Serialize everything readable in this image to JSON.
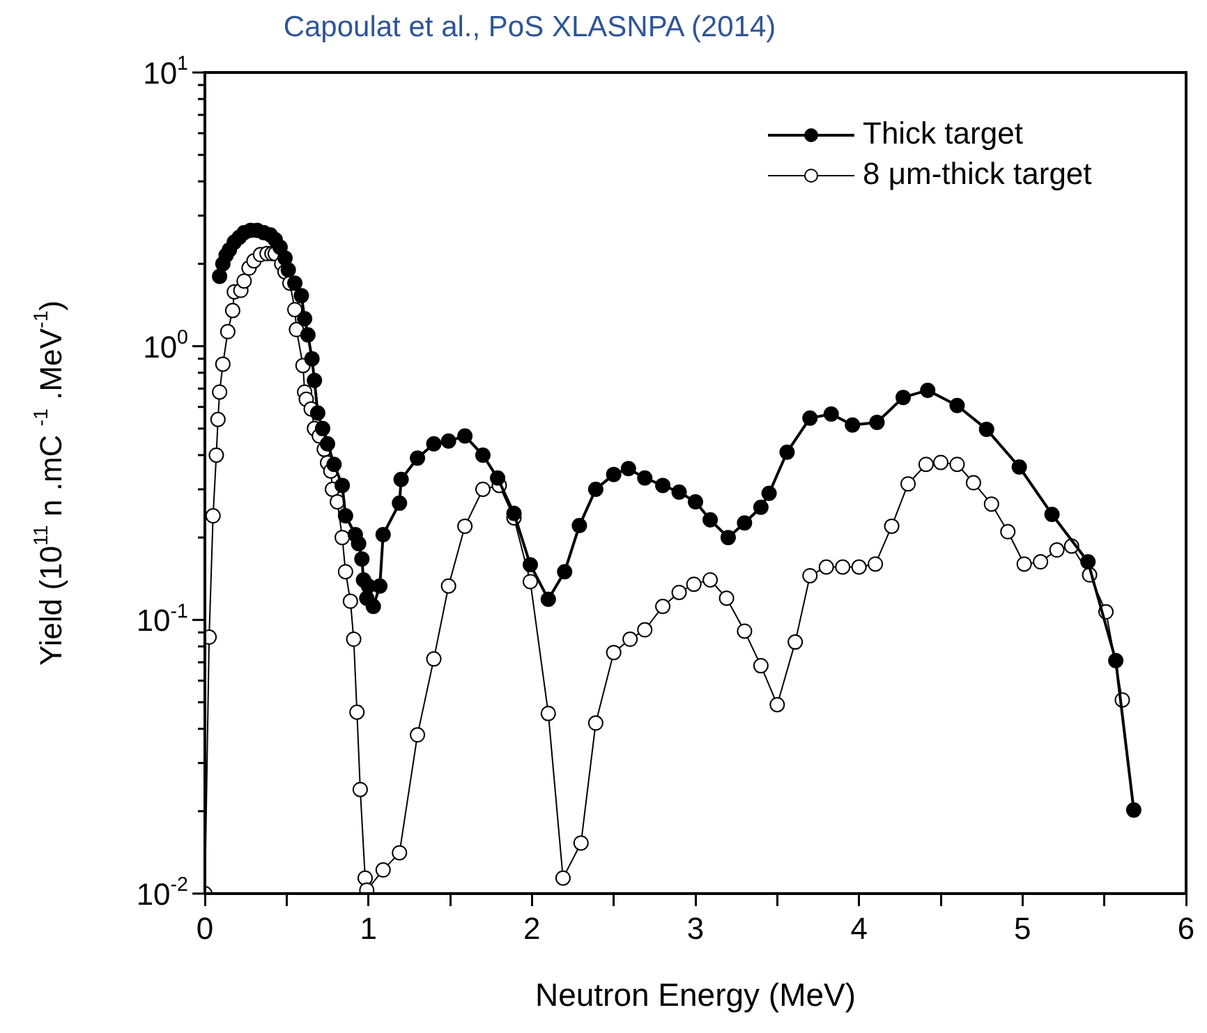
{
  "chart_data": {
    "type": "line",
    "title": "Capoulat et al., PoS XLASNPA (2014)",
    "xlabel": "Neutron Energy (MeV)",
    "ylabel": "Yield (10$^{11}$ n .mC $^{-1}$ .MeV$^{-1}$)",
    "log": "y",
    "legend": "top right",
    "marker": "circle",
    "line_style": "solid",
    "xlim": [
      0,
      6
    ],
    "xticks": [
      0,
      {
        "value": 0.5,
        "label": null
      },
      1,
      {
        "value": 1.5,
        "label": null
      },
      2,
      {
        "value": 2.5,
        "label": null
      },
      3,
      {
        "value": 3.5,
        "label": null
      },
      4,
      {
        "value": 4.5,
        "label": null
      },
      5,
      {
        "value": 5.5,
        "label": null
      },
      6
    ],
    "ylim": [
      0.01,
      10
    ],
    "yticks": [
      {
        "value": 0.01,
        "label": "10$^{-2}$"
      },
      {
        "value": 0.02,
        "label": null
      },
      {
        "value": 0.03,
        "label": null
      },
      {
        "value": 0.04,
        "label": null
      },
      {
        "value": 0.05,
        "label": null
      },
      {
        "value": 0.06,
        "label": null
      },
      {
        "value": 0.07,
        "label": null
      },
      {
        "value": 0.08,
        "label": null
      },
      {
        "value": 0.09,
        "label": null
      },
      {
        "value": 0.1,
        "label": "10$^{-1}$"
      },
      {
        "value": 0.2,
        "label": null
      },
      {
        "value": 0.3,
        "label": null
      },
      {
        "value": 0.4,
        "label": null
      },
      {
        "value": 0.5,
        "label": null
      },
      {
        "value": 0.6,
        "label": null
      },
      {
        "value": 0.7,
        "label": null
      },
      {
        "value": 0.8,
        "label": null
      },
      {
        "value": 0.9,
        "label": null
      },
      {
        "value": 1,
        "label": "10$^{0}$"
      },
      {
        "value": 2,
        "label": null
      },
      {
        "value": 3,
        "label": null
      },
      {
        "value": 4,
        "label": null
      },
      {
        "value": 5,
        "label": null
      },
      {
        "value": 6,
        "label": null
      },
      {
        "value": 7,
        "label": null
      },
      {
        "value": 8,
        "label": null
      },
      {
        "value": 9,
        "label": null
      },
      {
        "value": 10,
        "label": "10$^{1}$"
      }
    ],
    "series": [
      {
        "name": "Thick target",
        "color": "#000000",
        "x": [
          0.09,
          0.11,
          0.13,
          0.15,
          0.18,
          0.21,
          0.24,
          0.28,
          0.32,
          0.36,
          0.4,
          0.43,
          0.46,
          0.49,
          0.51,
          0.55,
          0.59,
          0.61,
          0.63,
          0.655,
          0.67,
          0.69,
          0.72,
          0.75,
          0.79,
          0.84,
          0.86,
          0.92,
          0.94,
          0.96,
          0.97,
          0.99,
          1.0,
          1.03,
          1.07,
          1.09,
          1.19,
          1.2,
          1.3,
          1.4,
          1.49,
          1.59,
          1.7,
          1.79,
          1.89,
          1.99,
          2.1,
          2.2,
          2.29,
          2.39,
          2.5,
          2.59,
          2.69,
          2.8,
          2.9,
          3.0,
          3.09,
          3.2,
          3.3,
          3.4,
          3.45,
          3.56,
          3.7,
          3.83,
          3.96,
          4.11,
          4.27,
          4.42,
          4.6,
          4.78,
          4.98,
          5.18,
          5.4,
          5.57,
          5.68
        ],
        "values": [
          1.8,
          2.0,
          2.15,
          2.25,
          2.4,
          2.5,
          2.6,
          2.65,
          2.65,
          2.6,
          2.55,
          2.45,
          2.3,
          2.1,
          1.9,
          1.7,
          1.53,
          1.26,
          1.1,
          0.9,
          0.75,
          0.57,
          0.5,
          0.44,
          0.37,
          0.31,
          0.24,
          0.205,
          0.19,
          0.167,
          0.14,
          0.12,
          0.133,
          0.112,
          0.133,
          0.205,
          0.267,
          0.326,
          0.39,
          0.44,
          0.45,
          0.47,
          0.4,
          0.33,
          0.245,
          0.159,
          0.119,
          0.15,
          0.221,
          0.3,
          0.34,
          0.357,
          0.33,
          0.31,
          0.293,
          0.27,
          0.232,
          0.2,
          0.226,
          0.258,
          0.29,
          0.41,
          0.546,
          0.565,
          0.515,
          0.527,
          0.65,
          0.69,
          0.607,
          0.497,
          0.362,
          0.243,
          0.163,
          0.071,
          0.0202
        ]
      },
      {
        "name": "8 μm-thick target",
        "color": "#000000",
        "x": [
          0,
          0.026,
          0.05,
          0.07,
          0.08,
          0.09,
          0.11,
          0.14,
          0.17,
          0.18,
          0.22,
          0.24,
          0.27,
          0.3,
          0.34,
          0.38,
          0.41,
          0.43,
          0.47,
          0.49,
          0.52,
          0.55,
          0.56,
          0.6,
          0.61,
          0.62,
          0.65,
          0.67,
          0.7,
          0.73,
          0.75,
          0.77,
          0.78,
          0.81,
          0.84,
          0.86,
          0.89,
          0.91,
          0.93,
          0.95,
          0.98,
          0.99,
          1.09,
          1.19,
          1.3,
          1.4,
          1.49,
          1.59,
          1.7,
          1.8,
          1.89,
          1.99,
          2.1,
          2.19,
          2.3,
          2.39,
          2.5,
          2.6,
          2.69,
          2.8,
          2.9,
          2.99,
          3.09,
          3.19,
          3.3,
          3.4,
          3.5,
          3.61,
          3.7,
          3.8,
          3.9,
          4.0,
          4.1,
          4.2,
          4.3,
          4.41,
          4.5,
          4.6,
          4.7,
          4.81,
          4.91,
          5.01,
          5.11,
          5.21,
          5.3,
          5.41,
          5.51,
          5.61
        ],
        "values": [
          0.01,
          0.0865,
          0.24,
          0.4,
          0.54,
          0.68,
          0.86,
          1.13,
          1.35,
          1.58,
          1.6,
          1.73,
          1.93,
          2.05,
          2.16,
          2.18,
          2.18,
          2.18,
          2.0,
          1.87,
          1.7,
          1.36,
          1.15,
          0.85,
          0.68,
          0.64,
          0.59,
          0.5,
          0.47,
          0.42,
          0.375,
          0.35,
          0.3,
          0.27,
          0.2,
          0.15,
          0.117,
          0.085,
          0.046,
          0.024,
          0.0114,
          0.0103,
          0.0122,
          0.0141,
          0.038,
          0.072,
          0.133,
          0.22,
          0.3,
          0.31,
          0.236,
          0.138,
          0.0455,
          0.0114,
          0.0153,
          0.042,
          0.076,
          0.085,
          0.092,
          0.112,
          0.126,
          0.135,
          0.14,
          0.12,
          0.091,
          0.068,
          0.049,
          0.083,
          0.145,
          0.156,
          0.156,
          0.156,
          0.16,
          0.22,
          0.314,
          0.37,
          0.376,
          0.37,
          0.317,
          0.265,
          0.21,
          0.16,
          0.163,
          0.18,
          0.186,
          0.146,
          0.107,
          0.051
        ]
      }
    ]
  }
}
